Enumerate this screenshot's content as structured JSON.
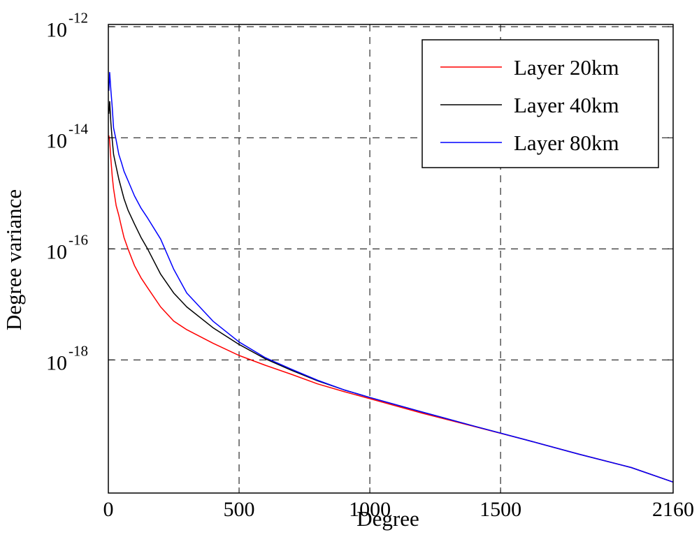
{
  "chart_data": {
    "type": "line",
    "title": "",
    "xlabel": "Degree",
    "ylabel": "Degree variance",
    "xlim": [
      0,
      2160
    ],
    "x_ticks": [
      {
        "value": 0,
        "label": "0"
      },
      {
        "value": 500,
        "label": "500"
      },
      {
        "value": 1000,
        "label": "1000"
      },
      {
        "value": 1500,
        "label": "1500"
      },
      {
        "value": 2160,
        "label": "2160"
      }
    ],
    "y_scale": "log",
    "ylim": [
      4e-21,
      1.1e-12
    ],
    "y_ticks": [
      {
        "value": 1e-12,
        "base": "10",
        "exp": "-12"
      },
      {
        "value": 1e-14,
        "base": "10",
        "exp": "-14"
      },
      {
        "value": 1e-16,
        "base": "10",
        "exp": "-16"
      },
      {
        "value": 1e-18,
        "base": "10",
        "exp": "-18"
      }
    ],
    "grid": true,
    "grid_style": "dashed",
    "legend_position": "top-right",
    "series": [
      {
        "name": "Layer 20km",
        "color": "#ff0000",
        "x": [
          2,
          5,
          10,
          15,
          20,
          30,
          40,
          50,
          60,
          75,
          100,
          125,
          150,
          200,
          250,
          300,
          400,
          500,
          600,
          700,
          800,
          900,
          1000,
          1200,
          1400,
          1600,
          1800,
          2000,
          2160
        ],
        "y": [
          1.1e-14,
          9e-15,
          4e-15,
          2e-15,
          1.2e-15,
          6e-16,
          4e-16,
          2.5e-16,
          1.6e-16,
          1e-16,
          5e-17,
          3e-17,
          2e-17,
          9e-18,
          5e-18,
          3.5e-18,
          2e-18,
          1.2e-18,
          8e-19,
          5.5e-19,
          3.7e-19,
          2.7e-19,
          2e-19,
          1.1e-19,
          6.3e-20,
          3.6e-20,
          2e-20,
          1.15e-20,
          6.3e-21
        ]
      },
      {
        "name": "Layer 40km",
        "color": "#000000",
        "x": [
          2,
          5,
          10,
          15,
          20,
          30,
          40,
          50,
          60,
          75,
          100,
          125,
          150,
          200,
          250,
          300,
          400,
          500,
          600,
          700,
          800,
          900,
          1000,
          1200,
          1400,
          1600,
          1800,
          2000,
          2160
        ],
        "y": [
          2.7e-14,
          4.5e-14,
          1.8e-14,
          9e-15,
          5e-15,
          3e-15,
          1.8e-15,
          1.2e-15,
          8e-16,
          5e-16,
          2.8e-16,
          1.6e-16,
          1e-16,
          3.5e-17,
          1.6e-17,
          9e-18,
          3.8e-18,
          1.9e-18,
          1.05e-18,
          6.5e-19,
          4.2e-19,
          2.9e-19,
          2.1e-19,
          1.15e-19,
          6.4e-20,
          3.6e-20,
          2e-20,
          1.15e-20,
          6.3e-21
        ]
      },
      {
        "name": "Layer 80km",
        "color": "#0000ff",
        "x": [
          2,
          5,
          10,
          15,
          20,
          30,
          40,
          50,
          60,
          75,
          100,
          125,
          150,
          200,
          250,
          300,
          400,
          500,
          600,
          700,
          800,
          900,
          1000,
          1200,
          1400,
          1600,
          1800,
          2000,
          2160
        ],
        "y": [
          7e-14,
          1.5e-13,
          7e-14,
          3.5e-14,
          1.5e-14,
          9e-15,
          5e-15,
          3.6e-15,
          2.5e-15,
          1.7e-15,
          9e-16,
          5.4e-16,
          3.6e-16,
          1.5e-16,
          4.3e-17,
          1.6e-17,
          5e-18,
          2.1e-18,
          1.1e-18,
          6.8e-19,
          4.3e-19,
          2.9e-19,
          2.1e-19,
          1.15e-19,
          6.4e-20,
          3.6e-20,
          2e-20,
          1.15e-20,
          6.3e-21
        ]
      }
    ]
  }
}
